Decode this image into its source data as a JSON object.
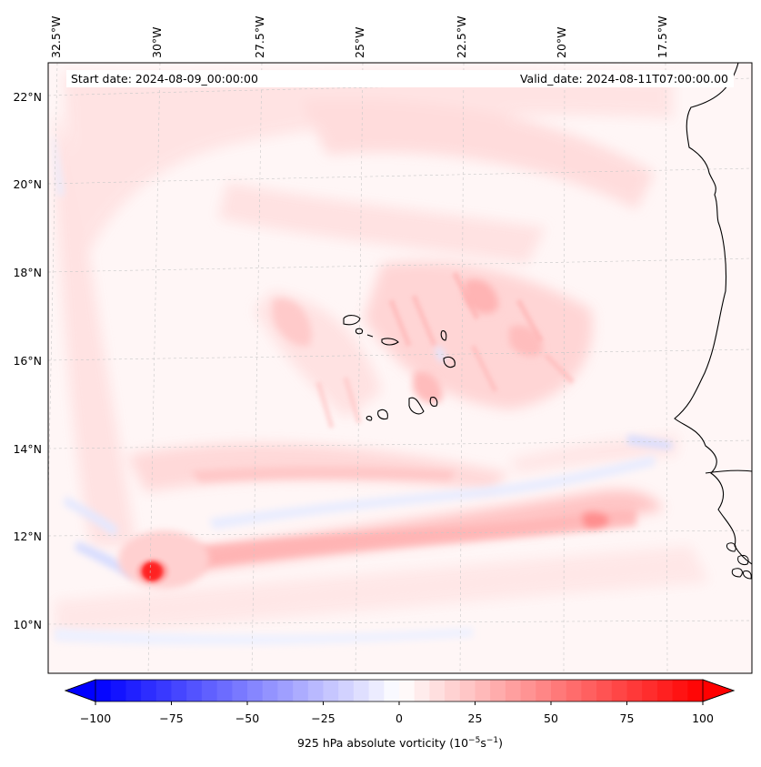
{
  "map": {
    "start_label": "Start date: 2024-08-09_00:00:00",
    "valid_label": "Valid_date: 2024-08-11T07:00:00.00",
    "lon_labels": [
      "32.5°W",
      "30°W",
      "27.5°W",
      "25°W",
      "22.5°W",
      "20°W",
      "17.5°W"
    ],
    "lat_labels": [
      "22°N",
      "20°N",
      "18°N",
      "16°N",
      "14°N",
      "12°N",
      "10°N"
    ],
    "variable": "925 hPa absolute vorticity",
    "region": "Eastern tropical Atlantic off West Africa (Cabo Verde Islands)"
  },
  "colorbar": {
    "label_prefix": "925 hPa absolute vorticity (10",
    "label_exp1": "−5",
    "label_mid": "s",
    "label_exp2": "−1",
    "label_suffix": ")",
    "tick_labels": [
      "−100",
      "−75",
      "−50",
      "−25",
      "0",
      "25",
      "50",
      "75",
      "100"
    ],
    "min": -100,
    "max": 100,
    "levels": 41,
    "cmap": "bwr"
  },
  "colors": {
    "negative": "#0000ff",
    "neutral": "#ffffff",
    "positive": "#ff0000",
    "coast": "#000000",
    "grid": "#c8c8c8"
  }
}
